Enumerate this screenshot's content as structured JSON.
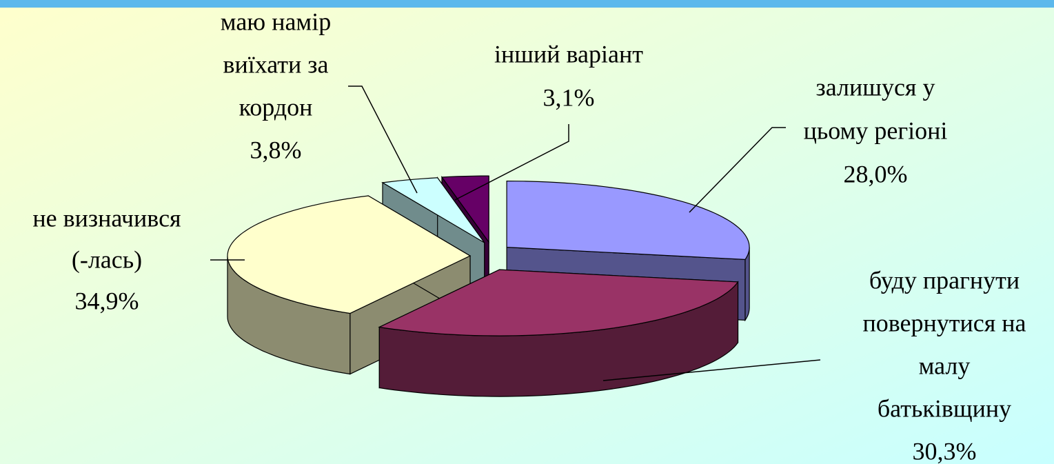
{
  "chart_data": {
    "type": "pie3d",
    "categories": [
      [
        "залишуся у",
        "цьому регіоні"
      ],
      [
        "буду прагнути",
        "повернутися на",
        "малу",
        "батьківщину"
      ],
      [
        "не визначився",
        "(-лась)"
      ],
      [
        "маю намір",
        "виїхати за",
        "кордон"
      ],
      [
        "інший варіант"
      ]
    ],
    "values": [
      28.0,
      30.3,
      34.9,
      3.8,
      3.1
    ],
    "value_labels": [
      "28,0%",
      "30,3%",
      "34,9%",
      "3,8%",
      "3,1%"
    ],
    "colors": [
      "#9999ff",
      "#993366",
      "#ffffcc",
      "#ccffff",
      "#660066"
    ]
  }
}
